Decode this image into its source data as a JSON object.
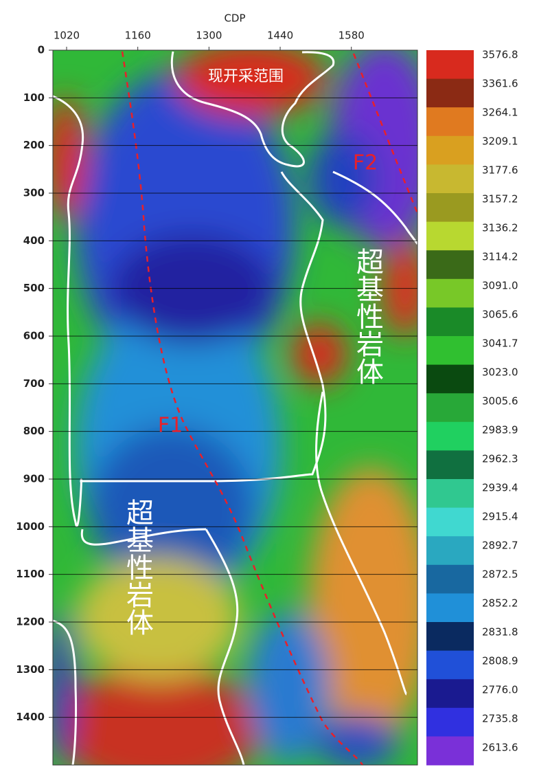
{
  "chart_data": {
    "type": "heatmap",
    "x_label": "CDP",
    "xlim": [
      993,
      1710
    ],
    "xticks": [
      1020,
      1160,
      1300,
      1440,
      1580
    ],
    "ylim": [
      0,
      1500
    ],
    "yticks": [
      0,
      100,
      200,
      300,
      400,
      500,
      600,
      700,
      800,
      900,
      1000,
      1100,
      1200,
      1300,
      1400
    ],
    "grid": true,
    "colorbar": {
      "ticks": [
        3576.8,
        3361.6,
        3264.1,
        3209.1,
        3177.6,
        3157.2,
        3136.2,
        3114.2,
        {
          "value": 3091,
          "label": "3091.0"
        },
        3065.6,
        3041.7,
        {
          "value": 3023,
          "label": "3023.0"
        },
        3005.6,
        2983.9,
        2962.3,
        2939.4,
        2915.4,
        2892.7,
        2872.5,
        2852.2,
        2831.8,
        2808.9,
        {
          "value": 2776,
          "label": "2776.0"
        },
        2735.8,
        2613.6
      ],
      "colors": [
        "#d82a1e",
        "#8b2a14",
        "#e07a20",
        "#d9a020",
        "#c8b830",
        "#9a9a20",
        "#b8d830",
        "#3a6a18",
        "#78c828",
        "#1a8a28",
        "#30c030",
        "#0a4a10",
        "#28a838",
        "#20d060",
        "#107040",
        "#30c890",
        "#40d8d0",
        "#2aa8c0",
        "#1868a0",
        "#2090d8",
        "#0a2a60",
        "#2050d8",
        "#1a1a90",
        "#3030e0",
        "#7a30d8"
      ]
    },
    "annotations": [
      "现开采范围",
      "F1",
      "F2",
      "超基性岩体",
      "超基性岩体"
    ]
  }
}
